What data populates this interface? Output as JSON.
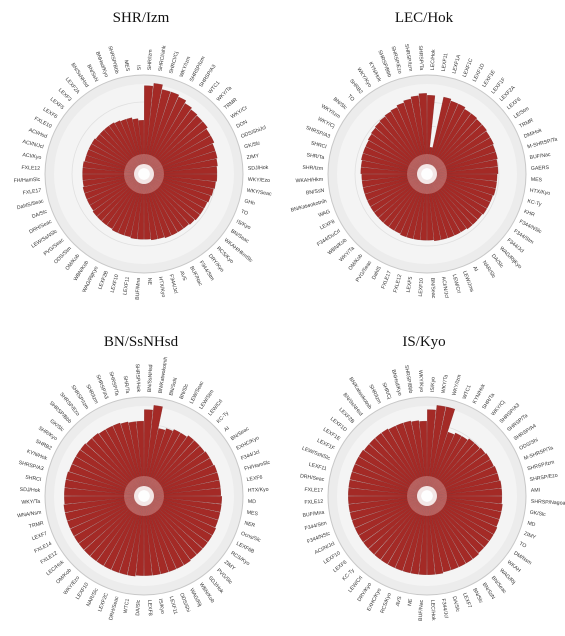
{
  "colors": {
    "bar": "#a42a26",
    "bar_edge": "#7a1a17",
    "ring": "#dcdcdc",
    "axis": "#999999",
    "label": "#333333"
  },
  "chart_data": [
    {
      "type": "radial-bar",
      "title": "SHR/Izm",
      "grid": true,
      "categories": [
        "SHR/Izm",
        "SHRCI/ahk",
        "SHRCI/Cj",
        "WKY/Izm",
        "SHRSP/Izm",
        "SHRSP/A3",
        "WTC1",
        "WKY/Ta",
        "TRMR",
        "WKY/Cr",
        "DON",
        "ODS/ShiJcl",
        "GK/Slc",
        "ZIMY",
        "SDJ/Hok",
        "WKY/Ezo",
        "WKY/Seac",
        "GHh",
        "TO",
        "IS/Kyo",
        "BN/Seac",
        "WKAH/HkmSlc",
        "RCS/Kyo",
        "DRY/Kyo",
        "F344/Stm",
        "BUF/Nac",
        "AVS",
        "F344/Jcl",
        "HTX/Kyo",
        "NE",
        "BUF/Mna",
        "LEXF11",
        "LEXF10",
        "LEXF2B",
        "WAG/RijKyo",
        "WBN/Kob",
        "OM/Kob",
        "ODS/Stm",
        "PVG/Seac",
        "LEW/SsNSlc",
        "DRH/Seac",
        "DA/Slc",
        "DahlS/Seac",
        "FXLE17",
        "FH/HamSlc",
        "FXLE12",
        "ACI/Kyo",
        "ACI/N/Jcl",
        "ACI/Hsd",
        "FXLE10",
        "LEXF6",
        "LEXF5",
        "LEXF3",
        "LEXF2A",
        "BN/SsNHsd",
        "BN/SsN",
        "BNHsd/Kyo",
        "SHRSP/Bbb",
        "MES",
        "IS"
      ],
      "values": [
        0.92,
        0.95,
        0.9,
        0.9,
        0.88,
        0.85,
        0.83,
        0.82,
        0.82,
        0.8,
        0.8,
        0.78,
        0.78,
        0.77,
        0.76,
        0.76,
        0.75,
        0.74,
        0.73,
        0.72,
        0.72,
        0.72,
        0.71,
        0.7,
        0.7,
        0.7,
        0.7,
        0.69,
        0.69,
        0.68,
        0.68,
        0.68,
        0.67,
        0.67,
        0.67,
        0.66,
        0.66,
        0.66,
        0.66,
        0.65,
        0.65,
        0.65,
        0.65,
        0.64,
        0.64,
        0.64,
        0.64,
        0.63,
        0.63,
        0.63,
        0.63,
        0.62,
        0.62,
        0.62,
        0.62,
        0.61,
        0.6,
        0.6,
        0.58,
        0.56
      ],
      "ylim": [
        0,
        1
      ]
    },
    {
      "type": "radial-bar",
      "title": "LEC/Hok",
      "grid": true,
      "categories": [
        "LEC/Hok",
        "LEXF11",
        "LEXF1A",
        "LEXF1C",
        "LEXF1D",
        "LEXF1E",
        "LEXF1F",
        "LEXF2A",
        "LEXF6",
        "LE/Stm",
        "TRMR",
        "DM/Hok",
        "M-SHRSP/Ta",
        "BUF/Nac",
        "GAERS",
        "MES",
        "HTX/Kyo",
        "KC-Ty",
        "KHR",
        "F344/NSlc",
        "F344/Stm",
        "F344/Jcl",
        "WAG/RijKyo",
        "DA/Slc",
        "NAR/Slc",
        "AI",
        "LEW/Jms",
        "LEW/Crl",
        "ACI/N/Jcl",
        "BN/Seac",
        "LEXF10",
        "LEXF5",
        "FXLE12",
        "FXLE17",
        "DahlS",
        "PVG/Seac",
        "OM/Kob",
        "WKY/Ta",
        "WBN/Kob",
        "F344/DuCrl",
        "LEXF8",
        "WAG",
        "BN/Katwokotnih",
        "BN/SsN",
        "WKAH/Hkm",
        "SHR/Izm",
        "SHR/Ta",
        "SHRCI",
        "SHRSP/A3",
        "WKY/Cj",
        "WKY/Izm",
        "BN/Slc",
        "TO",
        "SHRB2",
        "WKY/Kyo",
        "KYN/Hok",
        "SHRSP/Bbb",
        "SHRSP/Ezo",
        "SHRSP/Izm",
        "SHRSP/Ta"
      ],
      "values": [
        0.82,
        0.28,
        0.82,
        0.8,
        0.8,
        0.78,
        0.78,
        0.77,
        0.77,
        0.76,
        0.76,
        0.75,
        0.75,
        0.74,
        0.74,
        0.73,
        0.73,
        0.73,
        0.72,
        0.72,
        0.72,
        0.71,
        0.71,
        0.71,
        0.7,
        0.7,
        0.7,
        0.7,
        0.7,
        0.69,
        0.69,
        0.69,
        0.69,
        0.69,
        0.68,
        0.68,
        0.68,
        0.68,
        0.68,
        0.68,
        0.68,
        0.68,
        0.68,
        0.68,
        0.68,
        0.69,
        0.69,
        0.7,
        0.7,
        0.7,
        0.71,
        0.72,
        0.73,
        0.74,
        0.75,
        0.76,
        0.78,
        0.8,
        0.82,
        0.84
      ],
      "ylim": [
        0,
        1
      ]
    },
    {
      "type": "radial-bar",
      "title": "BN/SsNHsd",
      "grid": true,
      "categories": [
        "BN/SsNHsd",
        "BN/Katwokotnih",
        "BN/SsN",
        "BN/Slc",
        "LEW/Seac",
        "LEW/Stm",
        "LEW/Crl",
        "KC-Ty",
        "AI",
        "BN/Seac",
        "EXHC/Kyo",
        "F344/Jcl",
        "FH/HamSlc",
        "LEXF6",
        "HTX/Kyo",
        "MD",
        "MES",
        "NER",
        "Ocns/Slc",
        "LEXF6B",
        "RCS/Kyo",
        "ZIMY",
        "PVG/Slc",
        "SDJ/Hok",
        "WBN/Kob",
        "WAG/Rij",
        "ODS/Shi",
        "LEXF11",
        "IS/Kyo",
        "LEXF8",
        "DA/Slc",
        "WTC1",
        "DRH/Seac",
        "LEXF2C",
        "NAR/Slc",
        "LEXF10",
        "WKY/Ezo",
        "OM/Kob",
        "LEC/Hok",
        "FXLE12",
        "FXLE14",
        "LEXF7",
        "TRMR",
        "WNA/Nsm",
        "WKY/Ta",
        "SDJ/Hok",
        "SHRCI",
        "SHRSP/A3",
        "KYN/Hok",
        "SHRB2",
        "SHR/Kyo",
        "GK/Slc",
        "SHRSP/Bbb",
        "SHRSP/Ezo",
        "SHRSP/Izm",
        "SHR/Izm",
        "SHRSP/A3",
        "SHRSP/Ta",
        "SHR/Ta",
        "SHRSP/Hok"
      ],
      "values": [
        0.9,
        0.95,
        0.72,
        0.74,
        0.76,
        0.76,
        0.78,
        0.78,
        0.78,
        0.79,
        0.79,
        0.8,
        0.8,
        0.8,
        0.8,
        0.81,
        0.81,
        0.81,
        0.81,
        0.82,
        0.82,
        0.82,
        0.82,
        0.82,
        0.83,
        0.83,
        0.83,
        0.83,
        0.83,
        0.83,
        0.83,
        0.84,
        0.84,
        0.84,
        0.84,
        0.84,
        0.84,
        0.84,
        0.84,
        0.84,
        0.84,
        0.84,
        0.84,
        0.84,
        0.83,
        0.83,
        0.83,
        0.83,
        0.82,
        0.82,
        0.82,
        0.82,
        0.81,
        0.81,
        0.8,
        0.8,
        0.8,
        0.79,
        0.78,
        0.78
      ],
      "ylim": [
        0,
        1
      ]
    },
    {
      "type": "radial-bar",
      "title": "IS/Kyo",
      "grid": true,
      "categories": [
        "IS/Kyo",
        "WKY/Ta",
        "WKY/Izm",
        "WTC1",
        "KYN/Hok",
        "SHR/Ta",
        "WKY/Cj",
        "SHRSP/A3",
        "SHRSP/Ta",
        "SHRSP/A4",
        "ODS/Shi",
        "M-SHRSP/Ta",
        "SHRSP/Izm",
        "SHRSP/Ezo",
        "AMI",
        "SHRSP/Nagoa",
        "GK/Slc",
        "MD",
        "ZIMY",
        "TO",
        "DM/Nsm",
        "WKAH",
        "WAG/Rij",
        "BN/Seac",
        "BN/SsN",
        "BN/Slc",
        "LEXF7",
        "DA/Slc",
        "F344/Jcl",
        "LEC/Hok",
        "BUF/Nac",
        "NE",
        "AVS",
        "RCS/Kyo",
        "EXHC/Kyo",
        "DRY/Kyo",
        "LEW/Crl",
        "KC-Ty",
        "LEXF6",
        "LEXF10",
        "ACI/N/Jcl",
        "F344/NSlc",
        "F344/Stm",
        "BUF/Mna",
        "FXLE12",
        "FXLE17",
        "DRH/Seac",
        "LEXF11",
        "LEW/SsNSlc",
        "LEXF1F",
        "LEXF1E",
        "LEXF1D",
        "LEXF2B",
        "BN/SsNHsd",
        "BN/Katwokotnih",
        "SHR/Izm",
        "SHR/Cj",
        "BNHsd/Kyo",
        "SHRSP/Bbb",
        "WKY/Kyo"
      ],
      "values": [
        0.9,
        0.95,
        0.95,
        0.7,
        0.72,
        0.72,
        0.74,
        0.74,
        0.75,
        0.76,
        0.76,
        0.77,
        0.77,
        0.78,
        0.78,
        0.78,
        0.79,
        0.79,
        0.79,
        0.8,
        0.8,
        0.8,
        0.8,
        0.81,
        0.81,
        0.81,
        0.81,
        0.81,
        0.82,
        0.82,
        0.82,
        0.82,
        0.82,
        0.82,
        0.82,
        0.82,
        0.82,
        0.82,
        0.82,
        0.82,
        0.82,
        0.82,
        0.82,
        0.82,
        0.82,
        0.82,
        0.82,
        0.82,
        0.82,
        0.82,
        0.82,
        0.81,
        0.81,
        0.81,
        0.81,
        0.8,
        0.8,
        0.8,
        0.79,
        0.78
      ],
      "ylim": [
        0,
        1
      ]
    }
  ]
}
